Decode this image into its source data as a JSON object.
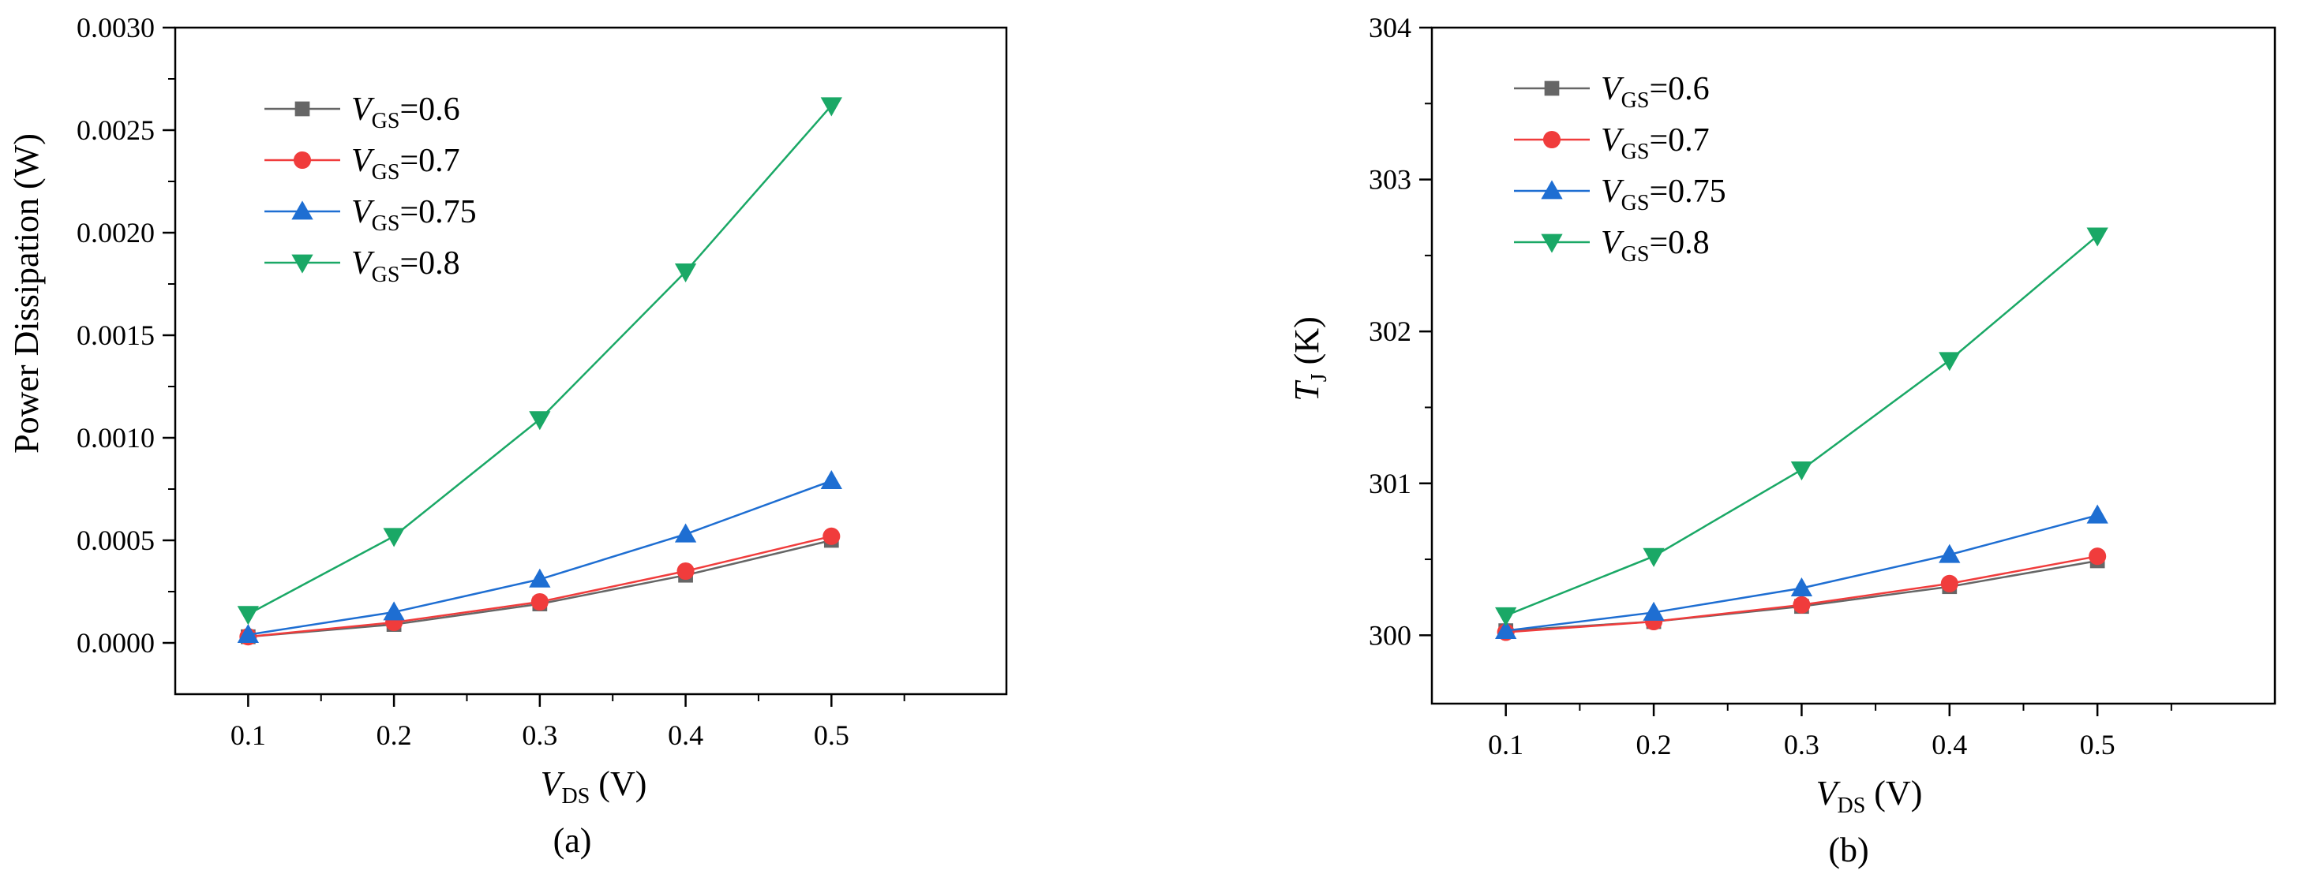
{
  "chart_data": [
    {
      "type": "line",
      "caption": "(a)",
      "xlabel": "V",
      "xlabel_sub": "DS",
      "xlabel_unit": " (V)",
      "ylabel": "Power Dissipation (W)",
      "ylabel_sub": "",
      "ylabel_unit": "",
      "x": [
        0.1,
        0.2,
        0.3,
        0.4,
        0.5
      ],
      "xlim": [
        0.05,
        0.62
      ],
      "ylim": [
        -0.00025,
        0.003
      ],
      "xticks": [
        "0.1",
        "0.2",
        "0.3",
        "0.4",
        "0.5"
      ],
      "yticks": [
        "0.0000",
        "0.0005",
        "0.0010",
        "0.0015",
        "0.0020",
        "0.0025",
        "0.0030"
      ],
      "ytick_values": [
        0,
        0.0005,
        0.001,
        0.0015,
        0.002,
        0.0025,
        0.003
      ],
      "series": [
        {
          "name": "V",
          "sub": "GS",
          "value": "=0.6",
          "color": "#666666",
          "marker": "square",
          "values": [
            3e-05,
            9e-05,
            0.00019,
            0.00033,
            0.0005
          ]
        },
        {
          "name": "V",
          "sub": "GS",
          "value": "=0.7",
          "color": "#f03c3c",
          "marker": "circle",
          "values": [
            3e-05,
            0.0001,
            0.0002,
            0.00035,
            0.00052
          ]
        },
        {
          "name": "V",
          "sub": "GS",
          "value": "=0.75",
          "color": "#1e6ed2",
          "marker": "triangle-up",
          "values": [
            4e-05,
            0.00015,
            0.00031,
            0.00053,
            0.00079
          ]
        },
        {
          "name": "V",
          "sub": "GS",
          "value": "=0.8",
          "color": "#1aa866",
          "marker": "triangle-down",
          "values": [
            0.00014,
            0.00052,
            0.00109,
            0.00181,
            0.00262
          ]
        }
      ]
    },
    {
      "type": "line",
      "caption": "(b)",
      "xlabel": "V",
      "xlabel_sub": "DS",
      "xlabel_unit": " (V)",
      "ylabel": "T",
      "ylabel_sub": "J",
      "ylabel_unit": " (K)",
      "x": [
        0.1,
        0.2,
        0.3,
        0.4,
        0.5
      ],
      "xlim": [
        0.05,
        0.62
      ],
      "ylim": [
        299.55,
        304
      ],
      "xticks": [
        "0.1",
        "0.2",
        "0.3",
        "0.4",
        "0.5"
      ],
      "yticks": [
        "300",
        "301",
        "302",
        "303",
        "304"
      ],
      "ytick_values": [
        300,
        301,
        302,
        303,
        304
      ],
      "series": [
        {
          "name": "V",
          "sub": "GS",
          "value": "=0.6",
          "color": "#666666",
          "marker": "square",
          "values": [
            300.03,
            300.09,
            300.19,
            300.32,
            300.49
          ]
        },
        {
          "name": "V",
          "sub": "GS",
          "value": "=0.7",
          "color": "#f03c3c",
          "marker": "circle",
          "values": [
            300.02,
            300.09,
            300.2,
            300.34,
            300.52
          ]
        },
        {
          "name": "V",
          "sub": "GS",
          "value": "=0.75",
          "color": "#1e6ed2",
          "marker": "triangle-up",
          "values": [
            300.03,
            300.15,
            300.31,
            300.53,
            300.79
          ]
        },
        {
          "name": "V",
          "sub": "GS",
          "value": "=0.8",
          "color": "#1aa866",
          "marker": "triangle-down",
          "values": [
            300.13,
            300.52,
            301.09,
            301.81,
            302.63
          ]
        }
      ]
    }
  ]
}
